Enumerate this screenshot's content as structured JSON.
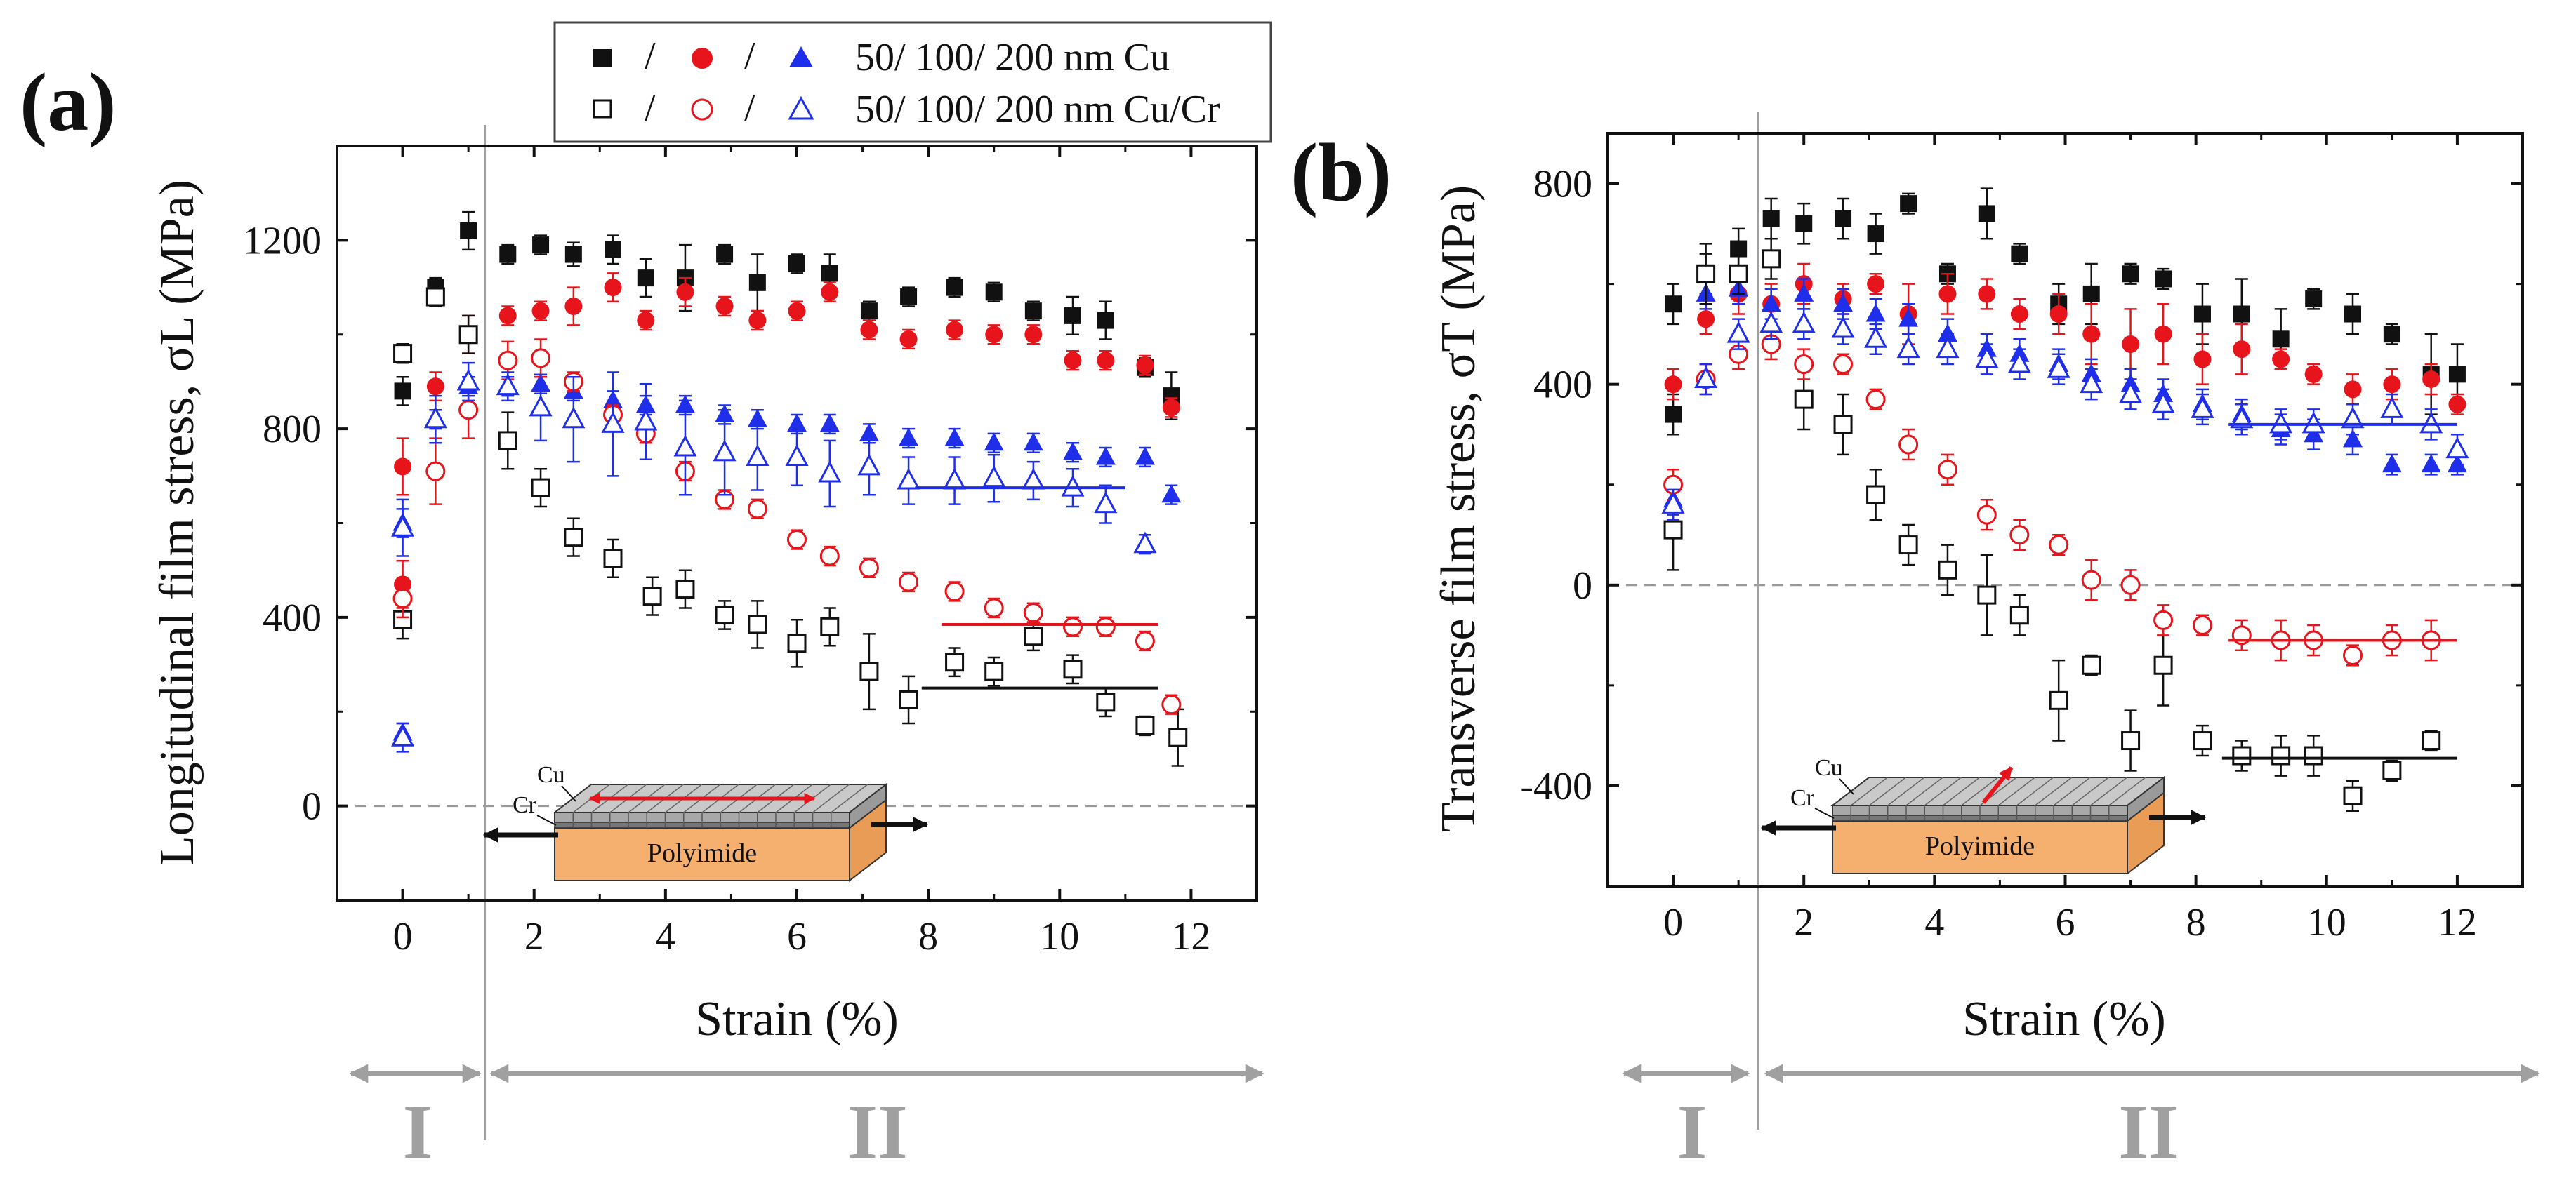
{
  "legend": {
    "row1_sep": "/",
    "row2_sep": "/",
    "row1_label": "50/ 100/ 200 nm Cu",
    "row2_label": "50/ 100/ 200 nm Cu/Cr"
  },
  "regions": {
    "stage1": "I",
    "stage2": "II"
  },
  "colors": {
    "black": "#111111",
    "red": "#e8141c",
    "blue": "#1f2ee8",
    "guide": "#a0a0a0",
    "substrate": "#f5b070"
  },
  "chart_data": [
    {
      "type": "scatter",
      "panel_label": "(a)",
      "xlabel": "Strain (%)",
      "ylabel": "Longitudinal film stress, σL (MPa)",
      "xlim": [
        -1,
        13
      ],
      "ylim": [
        -200,
        1400
      ],
      "xticks": [
        0,
        2,
        4,
        6,
        8,
        10,
        12
      ],
      "yticks": [
        0,
        400,
        800,
        1200
      ],
      "xtick_labels": [
        "0",
        "2",
        "4",
        "6",
        "8",
        "10",
        "12"
      ],
      "ytick_labels": [
        "0",
        "400",
        "800",
        "1200"
      ],
      "zero_line": 0,
      "stage_boundary_strain": 1.25,
      "schematic": {
        "top_layer": "Cu",
        "mid_layer": "Cr",
        "substrate": "Polyimide",
        "stress_direction": "longitudinal"
      },
      "series": [
        {
          "name": "50 nm Cu",
          "color": "black",
          "marker": "square",
          "filled": true,
          "x": [
            0,
            0,
            0.5,
            1.0,
            1.6,
            2.1,
            2.6,
            3.2,
            3.7,
            4.3,
            4.9,
            5.4,
            6.0,
            6.5,
            7.1,
            7.7,
            8.4,
            9.0,
            9.6,
            10.2,
            10.7,
            11.3,
            11.7
          ],
          "y": [
            880,
            960,
            1100,
            1220,
            1170,
            1190,
            1170,
            1180,
            1120,
            1120,
            1170,
            1110,
            1150,
            1130,
            1050,
            1080,
            1100,
            1090,
            1050,
            1040,
            1030,
            930,
            870
          ],
          "err": [
            30,
            20,
            20,
            40,
            20,
            20,
            25,
            30,
            40,
            70,
            20,
            60,
            20,
            40,
            20,
            20,
            20,
            20,
            20,
            40,
            40,
            20,
            50
          ]
        },
        {
          "name": "100 nm Cu",
          "color": "red",
          "marker": "circle",
          "filled": true,
          "x": [
            0,
            0,
            0.5,
            1.0,
            1.6,
            2.1,
            2.6,
            3.2,
            3.7,
            4.3,
            4.9,
            5.4,
            6.0,
            6.5,
            7.1,
            7.7,
            8.4,
            9.0,
            9.6,
            10.2,
            10.7,
            11.3,
            11.7
          ],
          "y": [
            470,
            720,
            890,
            1000,
            1040,
            1050,
            1060,
            1100,
            1030,
            1090,
            1060,
            1030,
            1050,
            1090,
            1010,
            990,
            1010,
            1000,
            1000,
            945,
            945,
            935,
            845
          ],
          "err": [
            50,
            60,
            30,
            40,
            20,
            20,
            40,
            30,
            20,
            30,
            20,
            20,
            20,
            20,
            20,
            20,
            20,
            20,
            20,
            20,
            20,
            20,
            20
          ]
        },
        {
          "name": "200 nm Cu",
          "color": "blue",
          "marker": "triangle",
          "filled": true,
          "x": [
            0,
            0,
            0.5,
            1.0,
            1.6,
            2.1,
            2.6,
            3.2,
            3.7,
            4.3,
            4.9,
            5.4,
            6.0,
            6.5,
            7.1,
            7.7,
            8.4,
            9.0,
            9.6,
            10.2,
            10.7,
            11.3,
            11.7
          ],
          "y": [
            155,
            600,
            820,
            890,
            890,
            895,
            880,
            860,
            850,
            850,
            830,
            820,
            810,
            810,
            790,
            780,
            780,
            770,
            770,
            750,
            740,
            740,
            660
          ],
          "err": [
            20,
            30,
            20,
            20,
            20,
            20,
            20,
            20,
            20,
            20,
            20,
            20,
            20,
            20,
            20,
            20,
            20,
            20,
            20,
            20,
            20,
            20,
            20
          ]
        },
        {
          "name": "50 nm Cu/Cr",
          "color": "black",
          "marker": "square",
          "filled": false,
          "x": [
            0,
            0,
            0.5,
            1.0,
            1.6,
            2.1,
            2.6,
            3.2,
            3.8,
            4.3,
            4.9,
            5.4,
            6.0,
            6.5,
            7.1,
            7.7,
            8.4,
            9.0,
            9.6,
            10.2,
            10.7,
            11.3,
            11.8
          ],
          "y": [
            395,
            960,
            1080,
            1000,
            775,
            675,
            570,
            525,
            445,
            460,
            405,
            385,
            345,
            380,
            285,
            225,
            305,
            285,
            360,
            290,
            220,
            170,
            145
          ],
          "err": [
            40,
            20,
            20,
            40,
            60,
            40,
            40,
            40,
            40,
            40,
            30,
            50,
            50,
            40,
            80,
            50,
            30,
            30,
            30,
            30,
            30,
            20,
            60
          ]
        },
        {
          "name": "100 nm Cu/Cr",
          "color": "red",
          "marker": "circle",
          "filled": false,
          "x": [
            0,
            0.5,
            1.0,
            1.6,
            2.1,
            2.6,
            3.2,
            3.7,
            4.3,
            4.9,
            5.4,
            6.0,
            6.5,
            7.1,
            7.7,
            8.4,
            9.0,
            9.6,
            10.2,
            10.7,
            11.3,
            11.7
          ],
          "y": [
            440,
            710,
            840,
            945,
            950,
            900,
            830,
            790,
            710,
            650,
            630,
            565,
            530,
            505,
            475,
            455,
            420,
            410,
            380,
            380,
            350,
            215
          ],
          "err": [
            40,
            70,
            60,
            40,
            40,
            20,
            20,
            20,
            20,
            20,
            20,
            20,
            20,
            20,
            20,
            20,
            20,
            20,
            20,
            20,
            20,
            20
          ]
        },
        {
          "name": "200 nm Cu/Cr",
          "color": "blue",
          "marker": "triangle",
          "filled": false,
          "x": [
            0,
            0,
            0.5,
            1.0,
            1.6,
            2.1,
            2.6,
            3.2,
            3.7,
            4.3,
            4.9,
            5.4,
            6.0,
            6.5,
            7.1,
            7.7,
            8.4,
            9.0,
            9.6,
            10.2,
            10.7,
            11.3
          ],
          "y": [
            145,
            590,
            820,
            900,
            890,
            845,
            820,
            810,
            815,
            760,
            750,
            740,
            740,
            705,
            720,
            690,
            690,
            695,
            690,
            675,
            640,
            555
          ],
          "err": [
            30,
            60,
            50,
            40,
            30,
            70,
            90,
            110,
            80,
            100,
            90,
            70,
            60,
            70,
            60,
            50,
            50,
            50,
            40,
            40,
            40,
            20
          ]
        }
      ],
      "saturation_lines": [
        {
          "color": "blue",
          "x": [
            7.8,
            11.0
          ],
          "y": [
            675,
            675
          ]
        },
        {
          "color": "red",
          "x": [
            8.2,
            11.5
          ],
          "y": [
            385,
            385
          ]
        },
        {
          "color": "black",
          "x": [
            7.9,
            11.5
          ],
          "y": [
            250,
            250
          ]
        }
      ]
    },
    {
      "type": "scatter",
      "panel_label": "(b)",
      "xlabel": "Strain (%)",
      "ylabel": "Transverse film stress, σT (MPa)",
      "xlim": [
        -1,
        13
      ],
      "ylim": [
        -600,
        900
      ],
      "xticks": [
        0,
        2,
        4,
        6,
        8,
        10,
        12
      ],
      "yticks": [
        -400,
        0,
        400,
        800
      ],
      "xtick_labels": [
        "0",
        "2",
        "4",
        "6",
        "8",
        "10",
        "12"
      ],
      "ytick_labels": [
        "-400",
        "0",
        "400",
        "800"
      ],
      "zero_line": 0,
      "stage_boundary_strain": 1.3,
      "schematic": {
        "top_layer": "Cu",
        "mid_layer": "Cr",
        "substrate": "Polyimide",
        "stress_direction": "transverse"
      },
      "series": [
        {
          "name": "50 nm Cu",
          "color": "black",
          "marker": "square",
          "filled": true,
          "x": [
            0,
            0,
            0.5,
            1.0,
            1.5,
            2.0,
            2.6,
            3.1,
            3.6,
            4.2,
            4.8,
            5.3,
            5.9,
            6.4,
            7.0,
            7.5,
            8.1,
            8.7,
            9.3,
            9.8,
            10.4,
            11.0,
            11.6,
            12.0
          ],
          "y": [
            340,
            560,
            620,
            670,
            730,
            720,
            730,
            700,
            760,
            620,
            740,
            660,
            560,
            580,
            620,
            610,
            540,
            540,
            490,
            570,
            540,
            500,
            420,
            420
          ],
          "err": [
            40,
            40,
            40,
            40,
            40,
            40,
            40,
            40,
            20,
            20,
            50,
            20,
            40,
            60,
            20,
            20,
            60,
            70,
            60,
            20,
            40,
            20,
            80,
            60
          ]
        },
        {
          "name": "100 nm Cu",
          "color": "red",
          "marker": "circle",
          "filled": true,
          "x": [
            0,
            0.5,
            1.0,
            1.5,
            2.0,
            2.6,
            3.1,
            3.6,
            4.2,
            4.8,
            5.3,
            5.9,
            6.4,
            7.0,
            7.5,
            8.1,
            8.7,
            9.3,
            9.8,
            10.4,
            11.0,
            11.6,
            12.0
          ],
          "y": [
            400,
            530,
            580,
            560,
            600,
            570,
            600,
            540,
            580,
            580,
            540,
            540,
            500,
            480,
            500,
            450,
            470,
            450,
            420,
            390,
            400,
            410,
            360
          ],
          "err": [
            30,
            30,
            40,
            40,
            40,
            30,
            20,
            60,
            40,
            30,
            30,
            40,
            60,
            70,
            60,
            50,
            50,
            20,
            20,
            30,
            30,
            30,
            20
          ]
        },
        {
          "name": "200 nm Cu",
          "color": "blue",
          "marker": "triangle",
          "filled": true,
          "x": [
            0,
            0.5,
            1.0,
            1.5,
            2.0,
            2.6,
            3.1,
            3.6,
            4.2,
            4.8,
            5.3,
            5.9,
            6.4,
            7.0,
            7.5,
            8.1,
            8.7,
            9.3,
            9.8,
            10.4,
            11.0,
            11.6,
            12.0
          ],
          "y": [
            170,
            580,
            590,
            560,
            580,
            560,
            540,
            530,
            500,
            470,
            460,
            440,
            420,
            400,
            380,
            360,
            340,
            310,
            300,
            290,
            240,
            240,
            240
          ],
          "err": [
            30,
            30,
            30,
            30,
            30,
            30,
            30,
            30,
            30,
            30,
            30,
            30,
            30,
            30,
            30,
            30,
            30,
            30,
            30,
            30,
            20,
            20,
            20
          ]
        },
        {
          "name": "50 nm Cu/Cr",
          "color": "black",
          "marker": "square",
          "filled": false,
          "x": [
            0,
            0.5,
            1.0,
            1.5,
            2.0,
            2.6,
            3.1,
            3.6,
            4.2,
            4.8,
            5.3,
            5.9,
            6.4,
            7.0,
            7.5,
            8.1,
            8.7,
            9.3,
            9.8,
            10.4,
            11.0,
            11.6
          ],
          "y": [
            110,
            620,
            620,
            650,
            370,
            320,
            180,
            80,
            30,
            -20,
            -60,
            -230,
            -160,
            -310,
            -160,
            -310,
            -340,
            -340,
            -340,
            -420,
            -370,
            -310
          ],
          "err": [
            80,
            60,
            40,
            40,
            60,
            60,
            50,
            40,
            50,
            80,
            40,
            80,
            20,
            60,
            80,
            30,
            30,
            40,
            40,
            30,
            20,
            20
          ]
        },
        {
          "name": "100 nm Cu/Cr",
          "color": "red",
          "marker": "circle",
          "filled": false,
          "x": [
            0,
            0.5,
            1.0,
            1.5,
            2.0,
            2.6,
            3.1,
            3.6,
            4.2,
            4.8,
            5.3,
            5.9,
            6.4,
            7.0,
            7.5,
            8.1,
            8.7,
            9.3,
            9.8,
            10.4,
            11.0,
            11.6
          ],
          "y": [
            200,
            410,
            460,
            480,
            440,
            440,
            370,
            280,
            230,
            140,
            100,
            80,
            10,
            0,
            -70,
            -80,
            -100,
            -110,
            -110,
            -140,
            -110,
            -110
          ],
          "err": [
            30,
            30,
            30,
            30,
            30,
            20,
            20,
            30,
            30,
            30,
            30,
            20,
            40,
            30,
            30,
            20,
            30,
            40,
            30,
            20,
            30,
            40
          ]
        },
        {
          "name": "200 nm Cu/Cr",
          "color": "blue",
          "marker": "triangle",
          "filled": false,
          "x": [
            0,
            0.5,
            1.0,
            1.5,
            2.0,
            2.6,
            3.1,
            3.6,
            4.2,
            4.8,
            5.3,
            5.9,
            6.4,
            7.0,
            7.5,
            8.1,
            8.7,
            9.3,
            9.8,
            10.4,
            11.0,
            11.6,
            12.0
          ],
          "y": [
            160,
            410,
            500,
            520,
            520,
            510,
            490,
            470,
            470,
            450,
            440,
            430,
            400,
            380,
            360,
            350,
            330,
            320,
            320,
            330,
            350,
            320,
            270
          ],
          "err": [
            30,
            30,
            30,
            30,
            30,
            30,
            30,
            30,
            30,
            30,
            30,
            30,
            30,
            30,
            30,
            30,
            30,
            30,
            30,
            30,
            30,
            30,
            30
          ]
        }
      ],
      "saturation_lines": [
        {
          "color": "blue",
          "x": [
            8.5,
            12.0
          ],
          "y": [
            320,
            320
          ]
        },
        {
          "color": "red",
          "x": [
            8.5,
            12.0
          ],
          "y": [
            -110,
            -110
          ]
        },
        {
          "color": "black",
          "x": [
            8.4,
            12.0
          ],
          "y": [
            -345,
            -345
          ]
        }
      ]
    }
  ]
}
